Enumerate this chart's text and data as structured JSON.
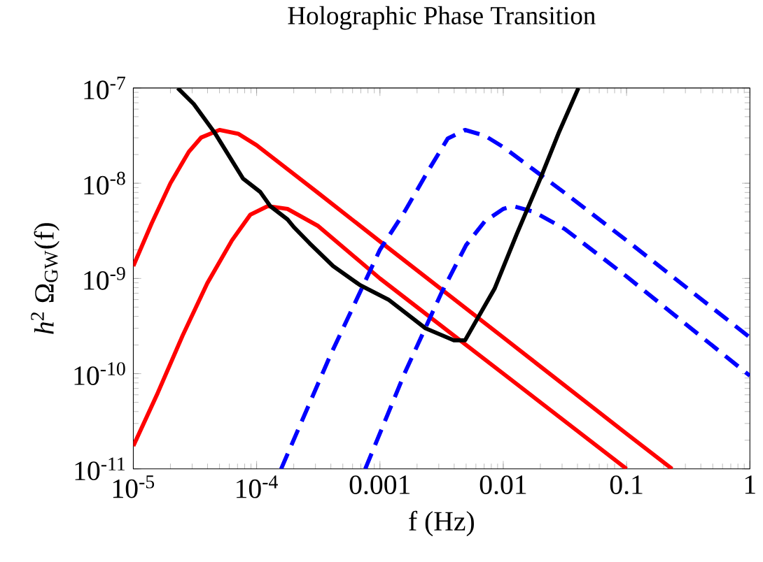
{
  "chart_data": {
    "type": "line",
    "title": "Holographic Phase Transition",
    "xlabel": "f (Hz)",
    "ylabel": "*h*$^{2}$ Ω$_{GW}$(f)",
    "log": "xy",
    "grid": false,
    "marker": "none",
    "xlim": [
      1e-05,
      1
    ],
    "ylim": [
      1e-11,
      1e-07
    ],
    "xticks": [
      {
        "value": 1e-05,
        "label": "10$^{-5}$"
      },
      {
        "value": 0.0001,
        "label": "10$^{-4}$"
      },
      0.001,
      0.01,
      0.1,
      1
    ],
    "yticks": [
      {
        "value": 1e-11,
        "label": "10$^{-11}$"
      },
      {
        "value": 1e-10,
        "label": "10$^{-10}$"
      },
      {
        "value": 1e-09,
        "label": "10$^{-9}$"
      },
      {
        "value": 1e-08,
        "label": "10$^{-8}$"
      },
      {
        "value": 1e-07,
        "label": "10$^{-7}$"
      }
    ],
    "series": [
      {
        "color": "#ff0000",
        "line_style": "solid",
        "x": [
          1e-05,
          1.41e-05,
          2e-05,
          2.82e-05,
          3.55e-05,
          5e-05,
          7.08e-05,
          0.0001,
          0.000316,
          0.001,
          0.01,
          0.1,
          0.234
        ],
        "values": [
          1.35e-09,
          3.8e-09,
          1e-08,
          2.14e-08,
          3.02e-08,
          3.63e-08,
          3.31e-08,
          2.51e-08,
          7.9e-09,
          2.45e-09,
          2.4e-10,
          2.34e-11,
          1e-11
        ]
      },
      {
        "color": "#ff0000",
        "line_style": "solid",
        "x": [
          1e-05,
          1.58e-05,
          2.51e-05,
          3.98e-05,
          6.31e-05,
          8.9e-05,
          0.000123,
          0.000178,
          0.000316,
          0.001,
          0.01,
          0.1
        ],
        "values": [
          1.74e-11,
          6.3e-11,
          2.51e-10,
          8.9e-10,
          2.51e-09,
          4.68e-09,
          5.75e-09,
          5.37e-09,
          3.55e-09,
          1e-09,
          1e-10,
          1e-11
        ]
      },
      {
        "color": "#0000ff",
        "line_style": "dashed",
        "x": [
          0.000158,
          0.000398,
          0.001,
          0.00158,
          0.00251,
          0.00355,
          0.0049,
          0.00708,
          0.01,
          0.0316,
          0.1,
          1
        ],
        "values": [
          1e-11,
          1.58e-10,
          2e-09,
          5e-09,
          1.41e-08,
          2.95e-08,
          3.63e-08,
          3.16e-08,
          2.4e-08,
          7.9e-09,
          2.51e-09,
          2.4e-10
        ]
      },
      {
        "color": "#0000ff",
        "line_style": "dashed",
        "x": [
          0.00076,
          0.00158,
          0.00316,
          0.005,
          0.00708,
          0.01,
          0.012,
          0.0178,
          0.0316,
          0.1,
          1
        ],
        "values": [
          1e-11,
          1e-10,
          7.1e-10,
          2.24e-09,
          3.98e-09,
          5.37e-09,
          5.75e-09,
          5e-09,
          3.3e-09,
          1.05e-09,
          9.5e-11
        ]
      },
      {
        "color": "#000000",
        "line_style": "solid",
        "x": [
          2.29e-05,
          3.09e-05,
          4.57e-05,
          7.76e-05,
          0.000107,
          0.000129,
          0.000178,
          0.0002,
          0.000269,
          0.000417,
          0.00069,
          0.00117,
          0.00234,
          0.00398,
          0.0049,
          0.006,
          0.0085,
          0.0129,
          0.02,
          0.0282,
          0.0407
        ],
        "values": [
          1e-07,
          6.8e-08,
          3.39e-08,
          1.12e-08,
          8.1e-09,
          5.75e-09,
          4.17e-09,
          3.47e-09,
          2.34e-09,
          1.35e-09,
          8.5e-10,
          6e-10,
          3e-10,
          2.24e-10,
          2.24e-10,
          3.55e-10,
          7.8e-10,
          2.95e-09,
          1.12e-08,
          3.39e-08,
          1e-07
        ]
      }
    ]
  }
}
